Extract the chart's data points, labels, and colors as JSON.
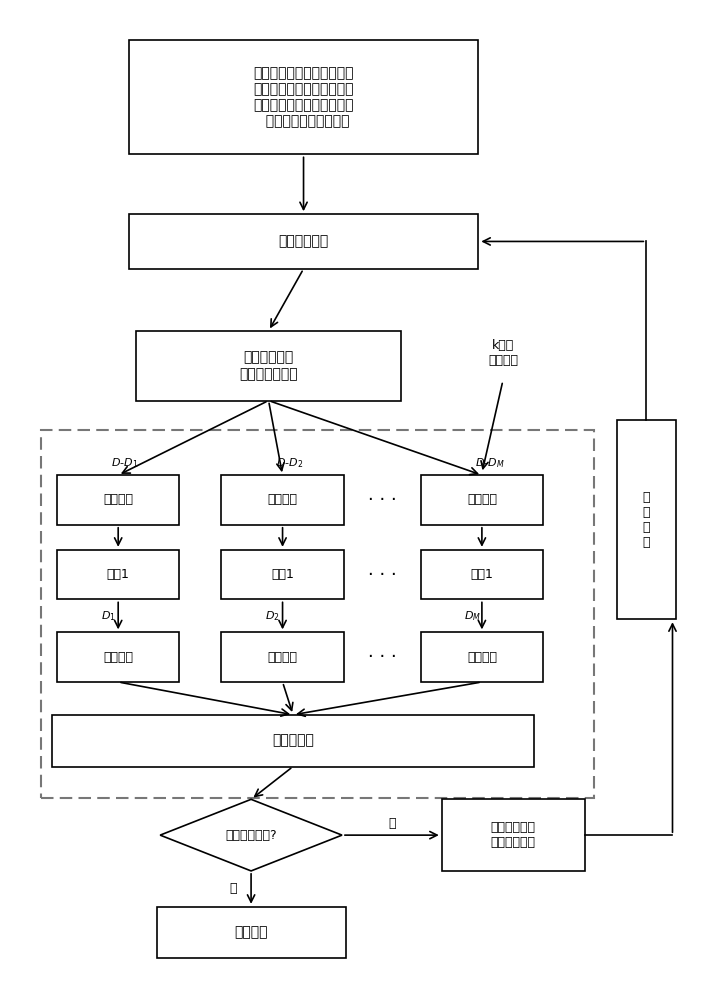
{
  "bg_color": "#ffffff",
  "font_color": "#000000",
  "box_edge_color": "#000000",
  "dashed_edge_color": "#666666",
  "arrow_color": "#000000",
  "font_size": 10,
  "small_font_size": 9,
  "label_font_size": 8,
  "init_text": "初始化，包括：最大迭代次\n数、种群个数、个体最大更\n新次数、惩罚因子和核函数\n  参数的最大值和最小值",
  "gen_pop_text": "产生初始种群",
  "update_params_text": "更新惩罚因子\n和核函数参数值",
  "kfold_text": "k折线\n交叉确认",
  "learn_text": "模型学习",
  "model_text": "模型1",
  "verify_text": "模型验证",
  "calc_text": "计算适应度",
  "condition_text": "是否满足条件?",
  "output_text": "输出结果",
  "cross_text": "交叉搜索、计\n算新适应度值",
  "update_pop_text": "更\n新\n种\n群",
  "yes_text": "是",
  "no_text": "否",
  "dd1_text": "$D$-$D_1$",
  "dd2_text": "$D$-$D_2$",
  "ddm_text": "$D$-$D_M$",
  "d1_text": "$D_1$",
  "d2_text": "$D_2$",
  "dm_text": "$D_M$",
  "dots_text": "· · ·"
}
